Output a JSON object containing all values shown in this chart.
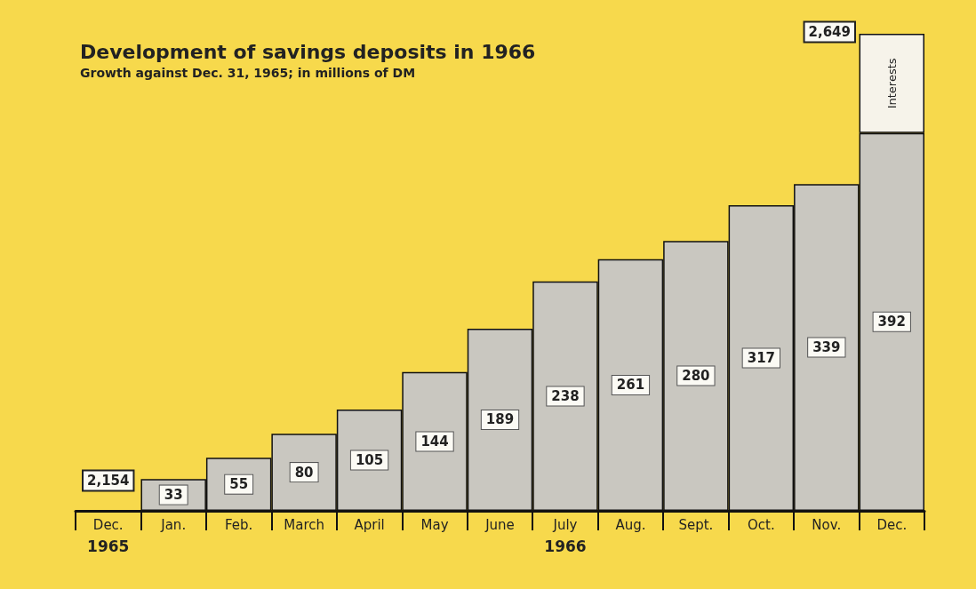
{
  "chart_data": {
    "type": "bar",
    "title": "Development of savings deposits in 1966",
    "subtitle": "Growth against Dec. 31, 1965; in millions of DM",
    "categories": [
      "Dec.",
      "Jan.",
      "Feb.",
      "March",
      "April",
      "May",
      "June",
      "July",
      "Aug.",
      "Sept.",
      "Oct.",
      "Nov.",
      "Dec."
    ],
    "stacked": true,
    "legend": false,
    "grid": false,
    "series": [
      {
        "color": "#c9c7c0",
        "values": [
          null,
          33,
          55,
          80,
          105,
          144,
          189,
          238,
          261,
          280,
          317,
          339,
          392
        ],
        "value_labels": [
          null,
          "33",
          "55",
          "80",
          "105",
          "144",
          "189",
          "238",
          "261",
          "280",
          "317",
          "339",
          "392"
        ]
      },
      {
        "name": "Interests",
        "color": "#f6f3ea",
        "values": [
          null,
          null,
          null,
          null,
          null,
          null,
          null,
          null,
          null,
          null,
          null,
          null,
          103
        ]
      }
    ],
    "annotations": [
      "2,154",
      "2,649",
      "1965",
      "1966"
    ]
  }
}
